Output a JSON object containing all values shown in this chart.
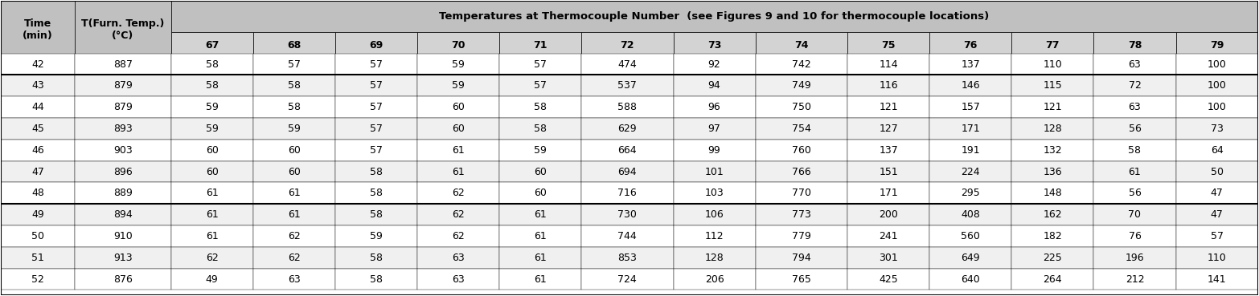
{
  "title_main": "Temperatures at Thermocouple Number",
  "title_sub": "(see Figures 9 and 10 for thermocouple locations)",
  "col_headers_row1": [
    "Time\n(min)",
    "T(Furn. Temp.)\n(°C)",
    "67",
    "68",
    "69",
    "70",
    "71",
    "72",
    "73",
    "74",
    "75",
    "76",
    "77",
    "78",
    "79"
  ],
  "rows": [
    [
      42,
      887,
      58,
      57,
      57,
      59,
      57,
      474,
      92,
      742,
      114,
      137,
      110,
      63,
      100
    ],
    [
      43,
      879,
      58,
      58,
      57,
      59,
      57,
      537,
      94,
      749,
      116,
      146,
      115,
      72,
      100
    ],
    [
      44,
      879,
      59,
      58,
      57,
      60,
      58,
      588,
      96,
      750,
      121,
      157,
      121,
      63,
      100
    ],
    [
      45,
      893,
      59,
      59,
      57,
      60,
      58,
      629,
      97,
      754,
      127,
      171,
      128,
      56,
      73
    ],
    [
      46,
      903,
      60,
      60,
      57,
      61,
      59,
      664,
      99,
      760,
      137,
      191,
      132,
      58,
      64
    ],
    [
      47,
      896,
      60,
      60,
      58,
      61,
      60,
      694,
      101,
      766,
      151,
      224,
      136,
      61,
      50
    ],
    [
      48,
      889,
      61,
      61,
      58,
      62,
      60,
      716,
      103,
      770,
      171,
      295,
      148,
      56,
      47
    ],
    [
      49,
      894,
      61,
      61,
      58,
      62,
      61,
      730,
      106,
      773,
      200,
      408,
      162,
      70,
      47
    ],
    [
      50,
      910,
      61,
      62,
      59,
      62,
      61,
      744,
      112,
      779,
      241,
      560,
      182,
      76,
      57
    ],
    [
      51,
      913,
      62,
      62,
      58,
      63,
      61,
      853,
      128,
      794,
      301,
      649,
      225,
      196,
      110
    ],
    [
      52,
      876,
      49,
      63,
      58,
      63,
      61,
      724,
      206,
      765,
      425,
      640,
      264,
      212,
      141
    ]
  ],
  "header_bg": "#c0c0c0",
  "subheader_bg": "#d3d3d3",
  "row_bg_odd": "#ffffff",
  "row_bg_even": "#f0f0f0",
  "thick_border_after_rows": [
    1,
    7
  ],
  "font_size": 9,
  "header_font_size": 9,
  "figure_width": 15.66,
  "figure_height": 3.69
}
